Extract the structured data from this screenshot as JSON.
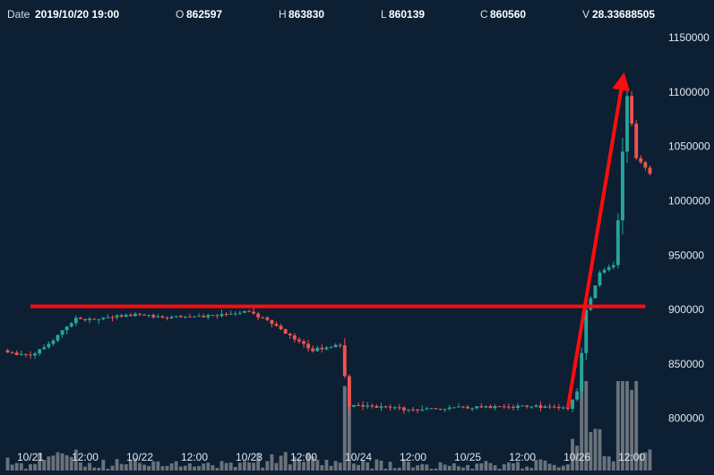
{
  "header": {
    "date_label": "Date",
    "date_value": "2019/10/20 19:00",
    "open_label": "O",
    "open_value": "862597",
    "high_label": "H",
    "high_value": "863830",
    "low_label": "L",
    "low_value": "860139",
    "close_label": "C",
    "close_value": "860560",
    "volume_label": "V",
    "volume_value": "28.33688505"
  },
  "colors": {
    "background": "#0c1f33",
    "up": "#26a69a",
    "down": "#ef5350",
    "volume": "#8a8f96",
    "annotation": "#ff0d0d",
    "text": "#e3e8ee"
  },
  "chart_data": {
    "type": "candlestick",
    "title": "",
    "interval_hours": 1,
    "y_ticks": [
      800000,
      850000,
      900000,
      950000,
      1000000,
      1050000,
      1100000,
      1150000
    ],
    "y_tick_labels": [
      "800000",
      "850000",
      "900000",
      "950000",
      "1000000",
      "1050000",
      "1100000",
      "1150000"
    ],
    "ylim": [
      780000,
      1160000
    ],
    "x_tick_labels": [
      "12:00",
      "10/21",
      "12:00",
      "10/22",
      "12:00",
      "10/23",
      "12:00",
      "10/24",
      "12:00",
      "10/25",
      "12:00",
      "10/26",
      "12:00"
    ],
    "grid": false,
    "close_anchors": [
      {
        "t": "2019/10/20 19:00",
        "close": 860560
      },
      {
        "t": "2019/10/21 00:00",
        "close": 857000
      },
      {
        "t": "2019/10/21 04:00",
        "close": 868000
      },
      {
        "t": "2019/10/21 07:00",
        "close": 880000
      },
      {
        "t": "2019/10/21 10:00",
        "close": 893000
      },
      {
        "t": "2019/10/21 12:00",
        "close": 891000
      },
      {
        "t": "2019/10/22 00:00",
        "close": 896000
      },
      {
        "t": "2019/10/22 03:00",
        "close": 893000
      },
      {
        "t": "2019/10/22 12:00",
        "close": 893000
      },
      {
        "t": "2019/10/23 00:00",
        "close": 898000
      },
      {
        "t": "2019/10/23 06:00",
        "close": 886000
      },
      {
        "t": "2019/10/23 10:00",
        "close": 872000
      },
      {
        "t": "2019/10/23 14:00",
        "close": 863000
      },
      {
        "t": "2019/10/23 20:00",
        "close": 867000
      },
      {
        "t": "2019/10/23 21:00",
        "close": 840000
      },
      {
        "t": "2019/10/23 22:00",
        "close": 812000
      },
      {
        "t": "2019/10/24 12:00",
        "close": 808000
      },
      {
        "t": "2019/10/25 00:00",
        "close": 810000
      },
      {
        "t": "2019/10/25 12:00",
        "close": 811000
      },
      {
        "t": "2019/10/25 22:00",
        "close": 810000
      },
      {
        "t": "2019/10/26 00:00",
        "close": 825000
      },
      {
        "t": "2019/10/26 02:00",
        "close": 900000
      },
      {
        "t": "2019/10/26 05:00",
        "close": 935000
      },
      {
        "t": "2019/10/26 08:00",
        "close": 940000
      },
      {
        "t": "2019/10/26 09:00",
        "close": 985000
      },
      {
        "t": "2019/10/26 11:00",
        "close": 1100000
      },
      {
        "t": "2019/10/26 13:00",
        "close": 1040000
      },
      {
        "t": "2019/10/26 16:00",
        "close": 1025000
      }
    ],
    "annotations": [
      {
        "type": "horizontal_line",
        "y": 903000,
        "from": "2019/10/21 00:00",
        "to": "2019/10/26 15:00"
      },
      {
        "type": "arrow",
        "from": {
          "t": "2019/10/25 22:00",
          "y": 810000
        },
        "to": {
          "t": "2019/10/26 10:00",
          "y": 1110000
        }
      }
    ]
  }
}
